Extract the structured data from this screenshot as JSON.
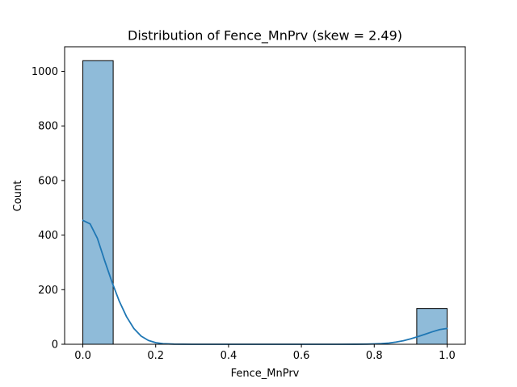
{
  "chart_data": {
    "type": "bar",
    "title": "Distribution of Fence_MnPrv (skew = 2.49)",
    "xlabel": "Fence_MnPrv",
    "ylabel": "Count",
    "xlim": [
      -0.05,
      1.05
    ],
    "ylim": [
      0,
      1090
    ],
    "x_ticks": [
      0.0,
      0.2,
      0.4,
      0.6,
      0.8,
      1.0
    ],
    "x_tick_labels": [
      "0.0",
      "0.2",
      "0.4",
      "0.6",
      "0.8",
      "1.0"
    ],
    "y_ticks": [
      0,
      200,
      400,
      600,
      800,
      1000
    ],
    "y_tick_labels": [
      "0",
      "200",
      "400",
      "600",
      "800",
      "1000"
    ],
    "bins": [
      {
        "x0": 0.0,
        "x1": 0.0833,
        "count": 1039
      },
      {
        "x0": 0.9167,
        "x1": 1.0,
        "count": 131
      }
    ],
    "kde": {
      "x": [
        0.0,
        0.02,
        0.04,
        0.06,
        0.08,
        0.1,
        0.12,
        0.14,
        0.16,
        0.18,
        0.2,
        0.22,
        0.25,
        0.3,
        0.4,
        0.5,
        0.6,
        0.7,
        0.75,
        0.78,
        0.8,
        0.82,
        0.84,
        0.86,
        0.88,
        0.9,
        0.92,
        0.94,
        0.96,
        0.98,
        1.0
      ],
      "y": [
        454,
        441,
        388,
        306,
        228,
        158,
        101,
        58,
        30,
        14,
        6,
        2,
        0.5,
        0,
        0,
        0,
        0,
        0,
        0.2,
        0.6,
        1.3,
        2.5,
        4.5,
        8,
        13,
        20,
        28,
        37,
        46,
        54,
        58
      ]
    },
    "grid": false,
    "colors": {
      "bar_fill": "#8fbbd9",
      "bar_edge": "#000000",
      "kde_line": "#1f77b4"
    }
  }
}
